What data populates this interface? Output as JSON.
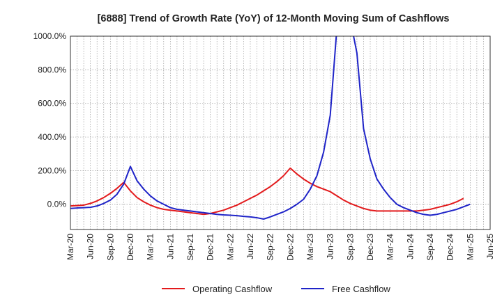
{
  "chart_data": {
    "type": "line",
    "title": "[6888]  Trend of Growth Rate (YoY) of 12-Month Moving Sum of Cashflows",
    "xlabel": "",
    "ylabel": "",
    "ylim": [
      -150,
      1000
    ],
    "y_ticks": [
      0,
      200,
      400,
      600,
      800,
      1000
    ],
    "y_tick_labels": [
      "0.0%",
      "200.0%",
      "400.0%",
      "600.0%",
      "800.0%",
      "1000.0%"
    ],
    "x_tick_labels": [
      "Mar-20",
      "Jun-20",
      "Sep-20",
      "Dec-20",
      "Mar-21",
      "Jun-21",
      "Sep-21",
      "Dec-21",
      "Mar-22",
      "Jun-22",
      "Sep-22",
      "Dec-22",
      "Mar-23",
      "Jun-23",
      "Sep-23",
      "Dec-23",
      "Mar-24",
      "Jun-24",
      "Sep-24",
      "Dec-24",
      "Mar-25",
      "Jun-25"
    ],
    "grid": true,
    "legend_position": "bottom",
    "series": [
      {
        "name": "Operating Cashflow",
        "color": "#e31a1c",
        "start_month_index": 0,
        "values": [
          -10,
          -8,
          -5,
          5,
          20,
          40,
          65,
          95,
          130,
          80,
          40,
          15,
          -5,
          -20,
          -30,
          -35,
          -40,
          -45,
          -50,
          -55,
          -60,
          -55,
          -45,
          -35,
          -20,
          -5,
          15,
          35,
          55,
          80,
          105,
          135,
          170,
          215,
          180,
          150,
          125,
          105,
          90,
          75,
          50,
          25,
          5,
          -10,
          -25,
          -35,
          -40,
          -40,
          -40,
          -40,
          -40,
          -40,
          -40,
          -35,
          -30,
          -20,
          -10,
          0,
          15,
          35
        ]
      },
      {
        "name": "Free Cashflow",
        "color": "#1f24c8",
        "start_month_index": 0,
        "values": [
          -25,
          -22,
          -20,
          -18,
          -10,
          5,
          25,
          60,
          120,
          225,
          140,
          90,
          50,
          20,
          0,
          -20,
          -30,
          -35,
          -40,
          -45,
          -50,
          -55,
          -60,
          -63,
          -65,
          -68,
          -72,
          -75,
          -80,
          -88,
          -75,
          -60,
          -45,
          -25,
          0,
          30,
          90,
          170,
          310,
          530,
          1050,
          1200,
          1100,
          900,
          450,
          270,
          150,
          90,
          40,
          0,
          -20,
          -35,
          -50,
          -60,
          -65,
          -60,
          -50,
          -40,
          -30,
          -15,
          0
        ]
      }
    ]
  }
}
